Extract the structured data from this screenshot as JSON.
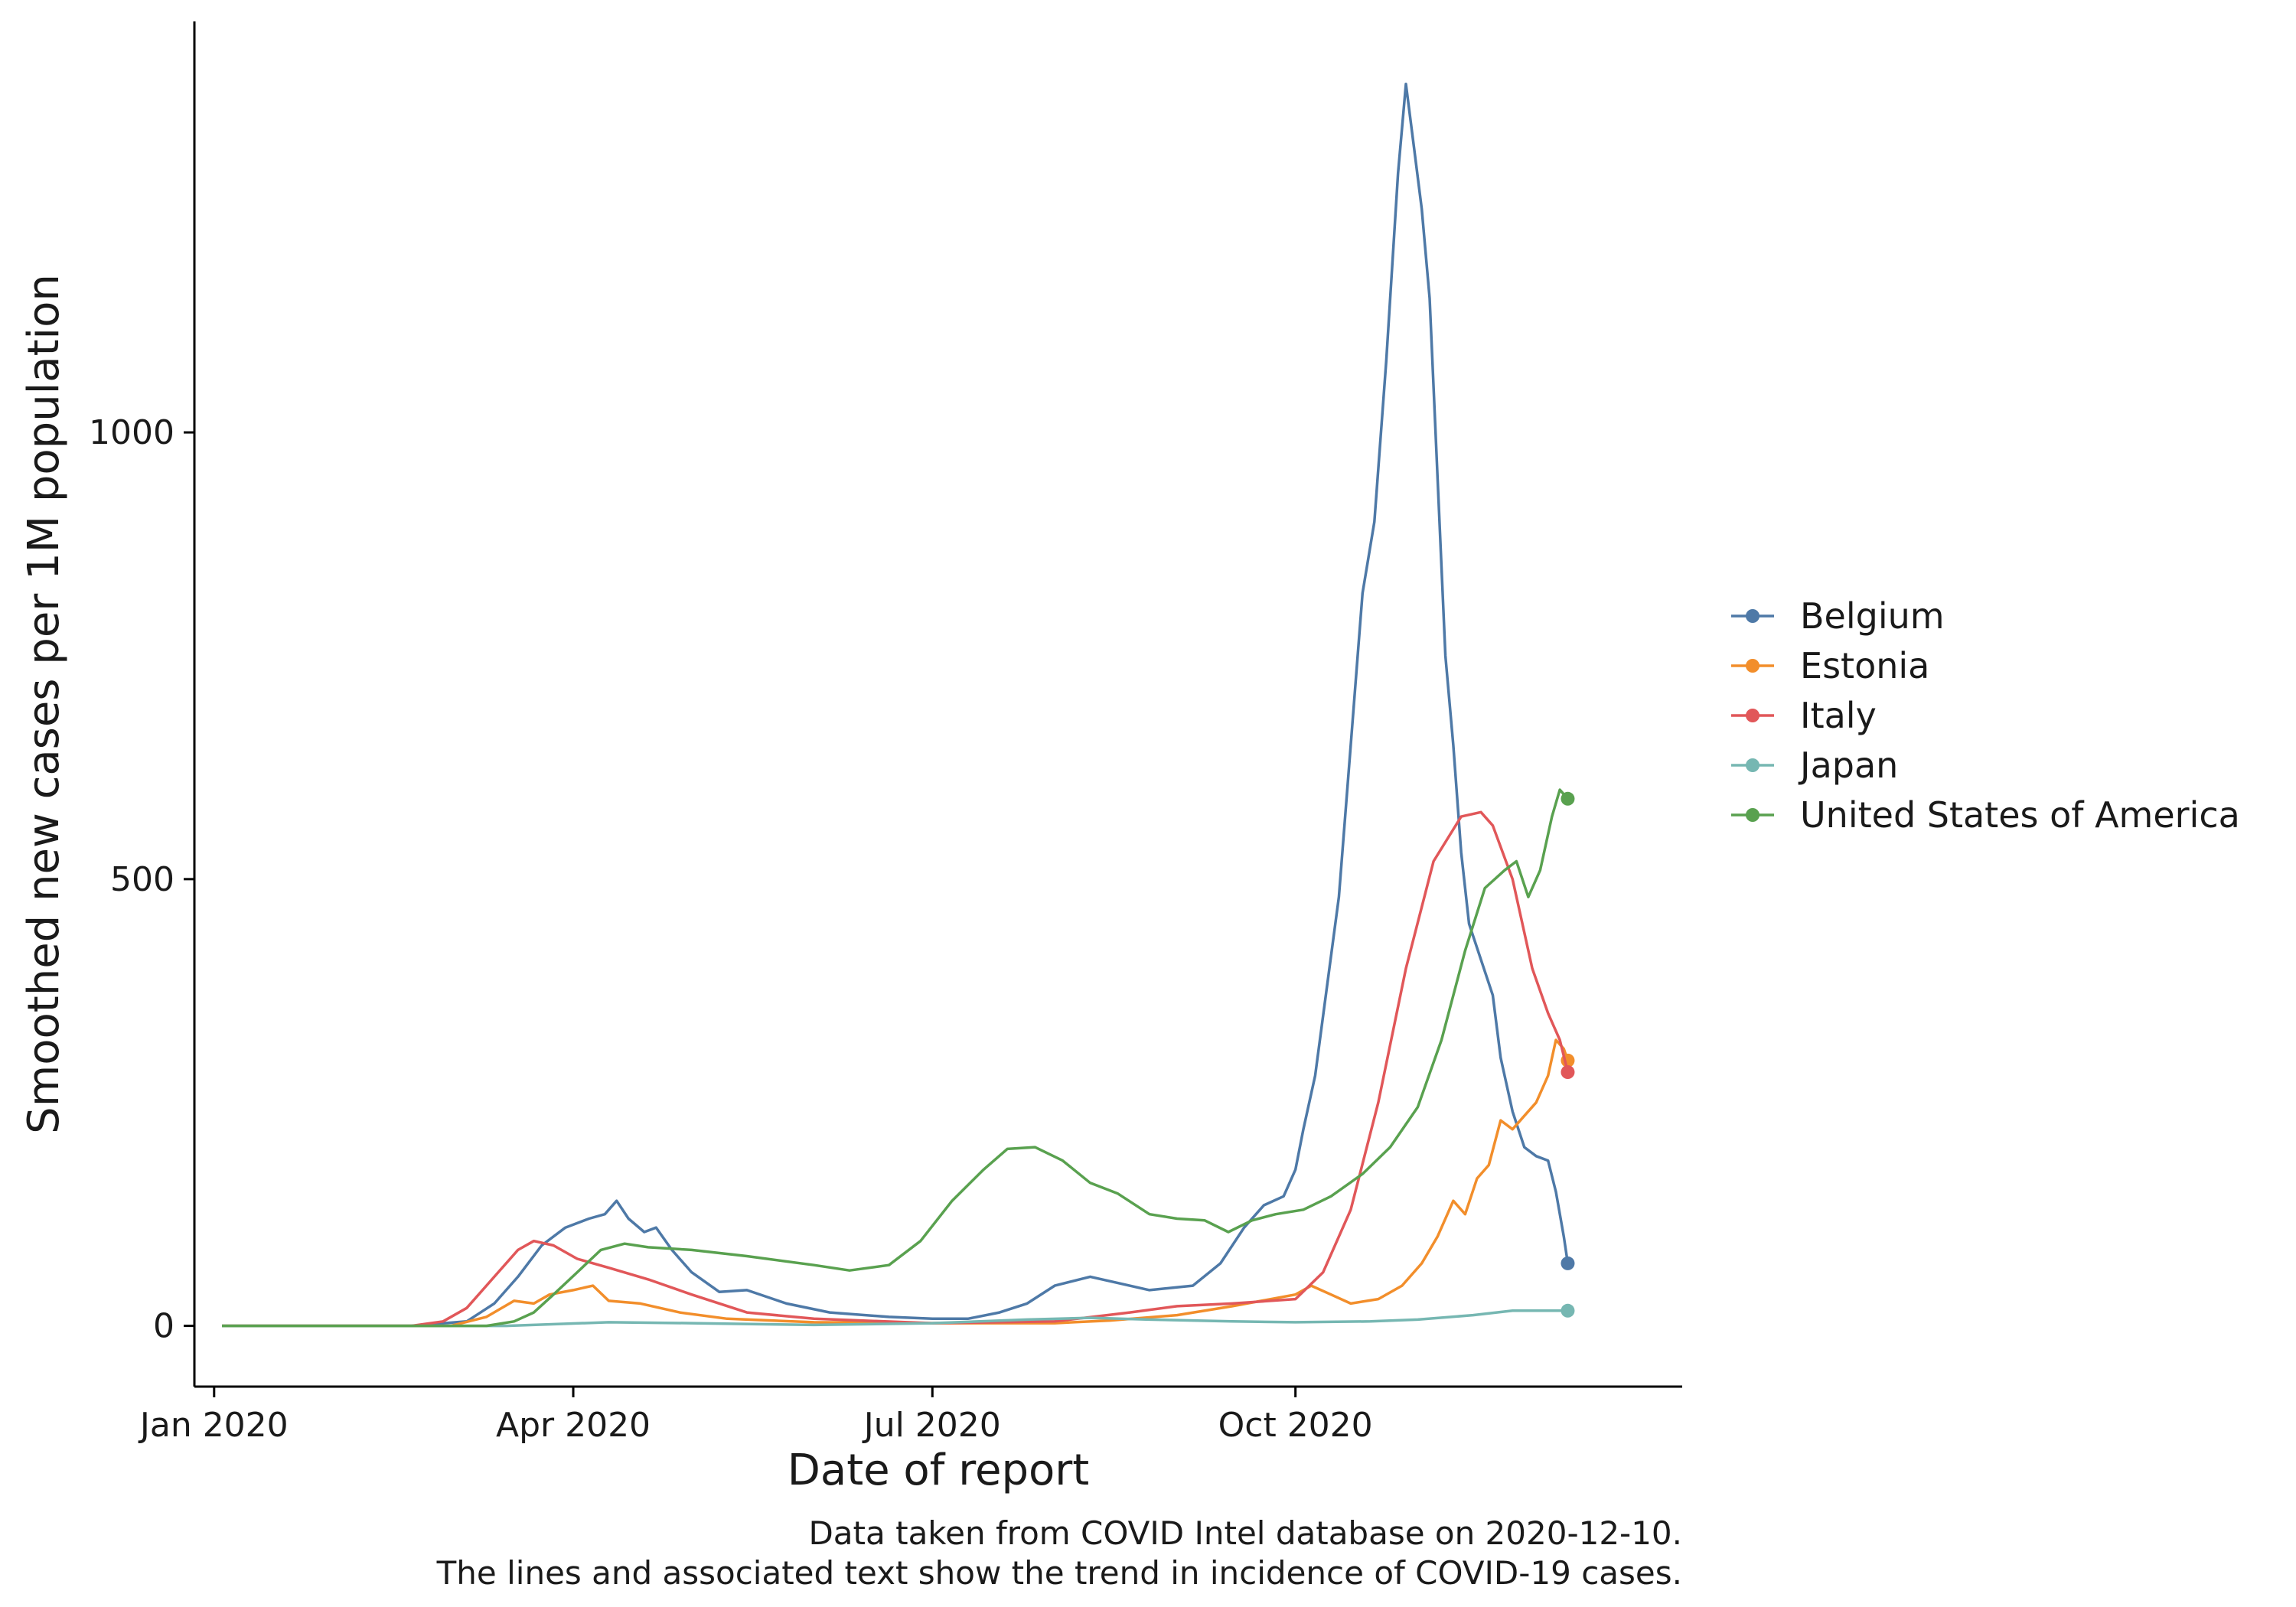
{
  "chart_data": {
    "type": "line",
    "xlabel": "Date of report",
    "ylabel": "Smoothed new cases per 1M population",
    "x_ticks": [
      {
        "date": "2020-01-01",
        "label": "Jan 2020"
      },
      {
        "date": "2020-04-01",
        "label": "Apr 2020"
      },
      {
        "date": "2020-07-01",
        "label": "Jul 2020"
      },
      {
        "date": "2020-10-01",
        "label": "Oct 2020"
      }
    ],
    "y_ticks": [
      0,
      500,
      1000
    ],
    "xlim": [
      "2019-12-27",
      "2021-01-07"
    ],
    "ylim": [
      -68,
      1460
    ],
    "grid": false,
    "legend_placement": "right",
    "show_end_markers": true,
    "caption": [
      "Data taken from COVID Intel database on 2020-12-10.",
      "The lines and associated text show the trend in incidence of COVID-19 cases."
    ],
    "series": [
      {
        "name": "Belgium",
        "color": "#4e79a7",
        "points": [
          [
            "2020-01-03",
            0
          ],
          [
            "2020-02-20",
            0
          ],
          [
            "2020-03-05",
            5
          ],
          [
            "2020-03-12",
            25
          ],
          [
            "2020-03-18",
            55
          ],
          [
            "2020-03-24",
            90
          ],
          [
            "2020-03-30",
            110
          ],
          [
            "2020-04-05",
            120
          ],
          [
            "2020-04-09",
            125
          ],
          [
            "2020-04-12",
            140
          ],
          [
            "2020-04-15",
            120
          ],
          [
            "2020-04-19",
            105
          ],
          [
            "2020-04-22",
            110
          ],
          [
            "2020-04-26",
            85
          ],
          [
            "2020-05-01",
            60
          ],
          [
            "2020-05-08",
            38
          ],
          [
            "2020-05-15",
            40
          ],
          [
            "2020-05-25",
            25
          ],
          [
            "2020-06-05",
            15
          ],
          [
            "2020-06-20",
            10
          ],
          [
            "2020-07-01",
            8
          ],
          [
            "2020-07-10",
            8
          ],
          [
            "2020-07-18",
            15
          ],
          [
            "2020-07-25",
            25
          ],
          [
            "2020-08-01",
            45
          ],
          [
            "2020-08-10",
            55
          ],
          [
            "2020-08-17",
            48
          ],
          [
            "2020-08-25",
            40
          ],
          [
            "2020-09-05",
            45
          ],
          [
            "2020-09-12",
            70
          ],
          [
            "2020-09-18",
            110
          ],
          [
            "2020-09-23",
            135
          ],
          [
            "2020-09-28",
            145
          ],
          [
            "2020-10-01",
            175
          ],
          [
            "2020-10-03",
            220
          ],
          [
            "2020-10-06",
            280
          ],
          [
            "2020-10-09",
            380
          ],
          [
            "2020-10-12",
            480
          ],
          [
            "2020-10-15",
            650
          ],
          [
            "2020-10-18",
            820
          ],
          [
            "2020-10-21",
            900
          ],
          [
            "2020-10-24",
            1080
          ],
          [
            "2020-10-27",
            1290
          ],
          [
            "2020-10-29",
            1390
          ],
          [
            "2020-10-31",
            1320
          ],
          [
            "2020-11-02",
            1250
          ],
          [
            "2020-11-04",
            1150
          ],
          [
            "2020-11-06",
            950
          ],
          [
            "2020-11-08",
            750
          ],
          [
            "2020-11-10",
            650
          ],
          [
            "2020-11-12",
            530
          ],
          [
            "2020-11-14",
            450
          ],
          [
            "2020-11-17",
            410
          ],
          [
            "2020-11-20",
            370
          ],
          [
            "2020-11-22",
            300
          ],
          [
            "2020-11-25",
            240
          ],
          [
            "2020-11-28",
            200
          ],
          [
            "2020-12-01",
            190
          ],
          [
            "2020-12-04",
            185
          ],
          [
            "2020-12-06",
            150
          ],
          [
            "2020-12-08",
            100
          ],
          [
            "2020-12-09",
            70
          ]
        ]
      },
      {
        "name": "Estonia",
        "color": "#f28e2b",
        "points": [
          [
            "2020-01-03",
            0
          ],
          [
            "2020-03-01",
            0
          ],
          [
            "2020-03-10",
            10
          ],
          [
            "2020-03-17",
            28
          ],
          [
            "2020-03-22",
            25
          ],
          [
            "2020-03-26",
            35
          ],
          [
            "2020-04-01",
            40
          ],
          [
            "2020-04-06",
            45
          ],
          [
            "2020-04-10",
            28
          ],
          [
            "2020-04-18",
            25
          ],
          [
            "2020-04-28",
            15
          ],
          [
            "2020-05-10",
            8
          ],
          [
            "2020-06-01",
            4
          ],
          [
            "2020-07-01",
            3
          ],
          [
            "2020-08-01",
            3
          ],
          [
            "2020-08-15",
            6
          ],
          [
            "2020-09-01",
            12
          ],
          [
            "2020-09-15",
            22
          ],
          [
            "2020-10-01",
            35
          ],
          [
            "2020-10-05",
            45
          ],
          [
            "2020-10-10",
            35
          ],
          [
            "2020-10-15",
            25
          ],
          [
            "2020-10-22",
            30
          ],
          [
            "2020-10-28",
            45
          ],
          [
            "2020-11-02",
            70
          ],
          [
            "2020-11-06",
            100
          ],
          [
            "2020-11-10",
            140
          ],
          [
            "2020-11-13",
            125
          ],
          [
            "2020-11-16",
            165
          ],
          [
            "2020-11-19",
            180
          ],
          [
            "2020-11-22",
            230
          ],
          [
            "2020-11-25",
            220
          ],
          [
            "2020-11-28",
            235
          ],
          [
            "2020-12-01",
            250
          ],
          [
            "2020-12-04",
            280
          ],
          [
            "2020-12-06",
            320
          ],
          [
            "2020-12-08",
            310
          ],
          [
            "2020-12-09",
            297
          ]
        ]
      },
      {
        "name": "Italy",
        "color": "#e15759",
        "points": [
          [
            "2020-01-03",
            0
          ],
          [
            "2020-02-20",
            0
          ],
          [
            "2020-02-28",
            5
          ],
          [
            "2020-03-05",
            20
          ],
          [
            "2020-03-12",
            55
          ],
          [
            "2020-03-18",
            85
          ],
          [
            "2020-03-22",
            95
          ],
          [
            "2020-03-27",
            90
          ],
          [
            "2020-04-02",
            75
          ],
          [
            "2020-04-10",
            65
          ],
          [
            "2020-04-20",
            52
          ],
          [
            "2020-05-01",
            35
          ],
          [
            "2020-05-15",
            15
          ],
          [
            "2020-06-01",
            8
          ],
          [
            "2020-07-01",
            3
          ],
          [
            "2020-08-01",
            5
          ],
          [
            "2020-08-20",
            15
          ],
          [
            "2020-09-01",
            22
          ],
          [
            "2020-09-15",
            25
          ],
          [
            "2020-10-01",
            30
          ],
          [
            "2020-10-08",
            60
          ],
          [
            "2020-10-15",
            130
          ],
          [
            "2020-10-22",
            250
          ],
          [
            "2020-10-29",
            400
          ],
          [
            "2020-11-05",
            520
          ],
          [
            "2020-11-12",
            570
          ],
          [
            "2020-11-17",
            575
          ],
          [
            "2020-11-20",
            560
          ],
          [
            "2020-11-25",
            500
          ],
          [
            "2020-11-30",
            400
          ],
          [
            "2020-12-04",
            350
          ],
          [
            "2020-12-07",
            320
          ],
          [
            "2020-12-09",
            284
          ]
        ]
      },
      {
        "name": "Japan",
        "color": "#76b7b2",
        "points": [
          [
            "2020-01-03",
            0
          ],
          [
            "2020-03-15",
            0
          ],
          [
            "2020-04-10",
            4
          ],
          [
            "2020-05-01",
            3
          ],
          [
            "2020-06-01",
            1
          ],
          [
            "2020-07-01",
            3
          ],
          [
            "2020-07-25",
            7
          ],
          [
            "2020-08-10",
            9
          ],
          [
            "2020-08-25",
            7
          ],
          [
            "2020-09-15",
            5
          ],
          [
            "2020-10-01",
            4
          ],
          [
            "2020-10-20",
            5
          ],
          [
            "2020-11-01",
            7
          ],
          [
            "2020-11-15",
            12
          ],
          [
            "2020-11-25",
            17
          ],
          [
            "2020-12-09",
            17
          ]
        ]
      },
      {
        "name": "United States of America",
        "color": "#59a14f",
        "points": [
          [
            "2020-01-03",
            0
          ],
          [
            "2020-03-10",
            0
          ],
          [
            "2020-03-17",
            5
          ],
          [
            "2020-03-22",
            15
          ],
          [
            "2020-03-27",
            35
          ],
          [
            "2020-04-02",
            60
          ],
          [
            "2020-04-08",
            85
          ],
          [
            "2020-04-14",
            92
          ],
          [
            "2020-04-20",
            88
          ],
          [
            "2020-05-01",
            85
          ],
          [
            "2020-05-15",
            78
          ],
          [
            "2020-06-01",
            68
          ],
          [
            "2020-06-10",
            62
          ],
          [
            "2020-06-20",
            68
          ],
          [
            "2020-06-28",
            95
          ],
          [
            "2020-07-06",
            140
          ],
          [
            "2020-07-14",
            175
          ],
          [
            "2020-07-20",
            198
          ],
          [
            "2020-07-27",
            200
          ],
          [
            "2020-08-03",
            185
          ],
          [
            "2020-08-10",
            160
          ],
          [
            "2020-08-17",
            148
          ],
          [
            "2020-08-25",
            125
          ],
          [
            "2020-09-01",
            120
          ],
          [
            "2020-09-08",
            118
          ],
          [
            "2020-09-14",
            105
          ],
          [
            "2020-09-20",
            118
          ],
          [
            "2020-09-26",
            125
          ],
          [
            "2020-10-03",
            130
          ],
          [
            "2020-10-10",
            145
          ],
          [
            "2020-10-18",
            170
          ],
          [
            "2020-10-25",
            200
          ],
          [
            "2020-11-01",
            245
          ],
          [
            "2020-11-07",
            320
          ],
          [
            "2020-11-13",
            420
          ],
          [
            "2020-11-18",
            490
          ],
          [
            "2020-11-23",
            510
          ],
          [
            "2020-11-26",
            520
          ],
          [
            "2020-11-29",
            480
          ],
          [
            "2020-12-02",
            510
          ],
          [
            "2020-12-05",
            570
          ],
          [
            "2020-12-07",
            600
          ],
          [
            "2020-12-09",
            590
          ]
        ]
      }
    ]
  }
}
